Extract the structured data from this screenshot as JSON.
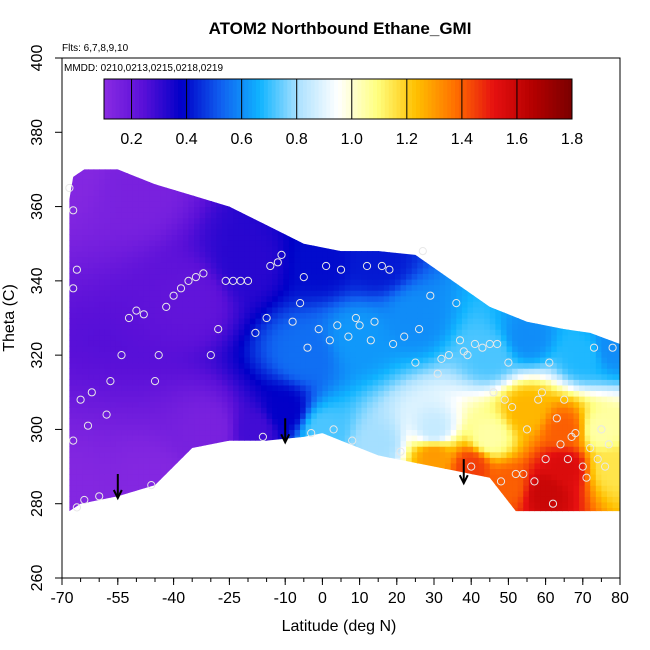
{
  "chart_data": {
    "type": "heatmap",
    "title": "ATOM2 Northbound Ethane_GMI",
    "flights_note": "Flts: 6,7,8,9,10",
    "dates_note": "MMDD: 0210,0213,0215,0218,0219",
    "xlabel": "Latitude (deg N)",
    "ylabel": "Theta (C)",
    "xlim": [
      -70,
      80
    ],
    "ylim": [
      260,
      400
    ],
    "x_ticks": [
      -70,
      -55,
      -40,
      -25,
      -10,
      0,
      10,
      20,
      30,
      40,
      50,
      60,
      70,
      80
    ],
    "x_tick_labels": [
      "-70",
      "-55",
      "-40",
      "-25",
      "-10",
      "0",
      "10",
      "20",
      "30",
      "40",
      "50",
      "60",
      "70",
      "80"
    ],
    "y_ticks": [
      260,
      280,
      300,
      320,
      340,
      360,
      380,
      400
    ],
    "y_tick_labels": [
      "260",
      "280",
      "300",
      "320",
      "340",
      "360",
      "380",
      "400"
    ],
    "colorbar": {
      "range": [
        0.1,
        1.8
      ],
      "ticks": [
        0.2,
        0.4,
        0.6,
        0.8,
        1.0,
        1.2,
        1.4,
        1.6,
        1.8
      ],
      "tick_labels": [
        "0.2",
        "0.4",
        "0.6",
        "0.8",
        "1.0",
        "1.2",
        "1.4",
        "1.6",
        "1.8"
      ],
      "colors": [
        "#8a2be2",
        "#5a10d8",
        "#0000c8",
        "#1060f0",
        "#10b4ff",
        "#aee2ff",
        "#ffffff",
        "#ffff80",
        "#ffc000",
        "#ff7000",
        "#e61010",
        "#b40000",
        "#7a0000"
      ]
    },
    "field_anchors": [
      {
        "lat": -68,
        "theta": 370,
        "value": 0.12
      },
      {
        "lat": -68,
        "theta": 280,
        "value": 0.12
      },
      {
        "lat": -50,
        "theta": 365,
        "value": 0.15
      },
      {
        "lat": -45,
        "theta": 285,
        "value": 0.12
      },
      {
        "lat": -35,
        "theta": 335,
        "value": 0.22
      },
      {
        "lat": -30,
        "theta": 300,
        "value": 0.15
      },
      {
        "lat": -20,
        "theta": 345,
        "value": 0.32
      },
      {
        "lat": -18,
        "theta": 300,
        "value": 0.28
      },
      {
        "lat": -10,
        "theta": 305,
        "value": 0.38
      },
      {
        "lat": -5,
        "theta": 320,
        "value": 0.55
      },
      {
        "lat": 0,
        "theta": 345,
        "value": 0.4
      },
      {
        "lat": 0,
        "theta": 300,
        "value": 0.72
      },
      {
        "lat": 10,
        "theta": 325,
        "value": 0.62
      },
      {
        "lat": 15,
        "theta": 345,
        "value": 0.42
      },
      {
        "lat": 15,
        "theta": 296,
        "value": 0.8
      },
      {
        "lat": 25,
        "theta": 330,
        "value": 0.6
      },
      {
        "lat": 30,
        "theta": 300,
        "value": 0.85
      },
      {
        "lat": 30,
        "theta": 293,
        "value": 1.3
      },
      {
        "lat": 40,
        "theta": 290,
        "value": 1.45
      },
      {
        "lat": 45,
        "theta": 298,
        "value": 1.05
      },
      {
        "lat": 45,
        "theta": 320,
        "value": 0.72
      },
      {
        "lat": 50,
        "theta": 285,
        "value": 1.4
      },
      {
        "lat": 55,
        "theta": 305,
        "value": 1.25
      },
      {
        "lat": 55,
        "theta": 325,
        "value": 0.6
      },
      {
        "lat": 60,
        "theta": 283,
        "value": 1.6
      },
      {
        "lat": 65,
        "theta": 300,
        "value": 1.4
      },
      {
        "lat": 65,
        "theta": 290,
        "value": 1.55
      },
      {
        "lat": 70,
        "theta": 320,
        "value": 0.68
      },
      {
        "lat": 75,
        "theta": 300,
        "value": 1.05
      },
      {
        "lat": 78,
        "theta": 290,
        "value": 1.15
      },
      {
        "lat": 78,
        "theta": 322,
        "value": 0.6
      }
    ],
    "upper_boundary": [
      [
        -68,
        362
      ],
      [
        -67,
        368
      ],
      [
        -64,
        370
      ],
      [
        -55,
        370
      ],
      [
        -45,
        366
      ],
      [
        -35,
        363
      ],
      [
        -25,
        360
      ],
      [
        -15,
        355
      ],
      [
        -5,
        350
      ],
      [
        5,
        348
      ],
      [
        15,
        348
      ],
      [
        25,
        347
      ],
      [
        35,
        340
      ],
      [
        45,
        333
      ],
      [
        55,
        329
      ],
      [
        65,
        327
      ],
      [
        72,
        326
      ],
      [
        80,
        323
      ]
    ],
    "lower_boundary": [
      [
        -68,
        278
      ],
      [
        -65,
        280
      ],
      [
        -55,
        282
      ],
      [
        -45,
        285
      ],
      [
        -35,
        295
      ],
      [
        -25,
        297
      ],
      [
        -15,
        297
      ],
      [
        -5,
        298
      ],
      [
        0,
        299
      ],
      [
        5,
        297
      ],
      [
        15,
        293
      ],
      [
        25,
        291
      ],
      [
        35,
        289
      ],
      [
        45,
        287
      ],
      [
        52,
        278
      ],
      [
        80,
        278
      ]
    ],
    "sample_points": [
      [
        -68,
        365
      ],
      [
        -67,
        359
      ],
      [
        -66,
        343
      ],
      [
        -67,
        338
      ],
      [
        -65,
        308
      ],
      [
        -67,
        297
      ],
      [
        -66,
        279
      ],
      [
        -64,
        281
      ],
      [
        -63,
        301
      ],
      [
        -62,
        310
      ],
      [
        -60,
        282
      ],
      [
        -58,
        304
      ],
      [
        -57,
        313
      ],
      [
        -54,
        320
      ],
      [
        -52,
        330
      ],
      [
        -50,
        332
      ],
      [
        -48,
        331
      ],
      [
        -46,
        285
      ],
      [
        -45,
        313
      ],
      [
        -44,
        320
      ],
      [
        -42,
        333
      ],
      [
        -40,
        336
      ],
      [
        -38,
        338
      ],
      [
        -36,
        340
      ],
      [
        -34,
        341
      ],
      [
        -32,
        342
      ],
      [
        -30,
        320
      ],
      [
        -28,
        327
      ],
      [
        -26,
        340
      ],
      [
        -24,
        340
      ],
      [
        -22,
        340
      ],
      [
        -20,
        340
      ],
      [
        -18,
        326
      ],
      [
        -16,
        298
      ],
      [
        -15,
        330
      ],
      [
        -14,
        344
      ],
      [
        -12,
        345
      ],
      [
        -11,
        347
      ],
      [
        -8,
        329
      ],
      [
        -6,
        334
      ],
      [
        -5,
        341
      ],
      [
        -4,
        322
      ],
      [
        -3,
        299
      ],
      [
        -1,
        327
      ],
      [
        1,
        344
      ],
      [
        2,
        324
      ],
      [
        3,
        300
      ],
      [
        4,
        328
      ],
      [
        5,
        343
      ],
      [
        7,
        325
      ],
      [
        8,
        297
      ],
      [
        9,
        330
      ],
      [
        10,
        328
      ],
      [
        12,
        344
      ],
      [
        13,
        324
      ],
      [
        14,
        329
      ],
      [
        16,
        344
      ],
      [
        18,
        343
      ],
      [
        19,
        323
      ],
      [
        21,
        294
      ],
      [
        22,
        325
      ],
      [
        25,
        318
      ],
      [
        26,
        327
      ],
      [
        27,
        348
      ],
      [
        29,
        336
      ],
      [
        31,
        315
      ],
      [
        32,
        319
      ],
      [
        34,
        320
      ],
      [
        36,
        334
      ],
      [
        37,
        324
      ],
      [
        38,
        321
      ],
      [
        39,
        320
      ],
      [
        40,
        290
      ],
      [
        41,
        323
      ],
      [
        43,
        322
      ],
      [
        45,
        323
      ],
      [
        46,
        310
      ],
      [
        47,
        323
      ],
      [
        48,
        286
      ],
      [
        49,
        308
      ],
      [
        50,
        318
      ],
      [
        51,
        306
      ],
      [
        52,
        288
      ],
      [
        54,
        288
      ],
      [
        55,
        300
      ],
      [
        57,
        286
      ],
      [
        58,
        308
      ],
      [
        59,
        310
      ],
      [
        60,
        292
      ],
      [
        61,
        318
      ],
      [
        62,
        280
      ],
      [
        63,
        303
      ],
      [
        64,
        296
      ],
      [
        65,
        308
      ],
      [
        66,
        292
      ],
      [
        67,
        298
      ],
      [
        68,
        299
      ],
      [
        70,
        290
      ],
      [
        71,
        287
      ],
      [
        72,
        295
      ],
      [
        73,
        322
      ],
      [
        74,
        292
      ],
      [
        75,
        300
      ],
      [
        76,
        290
      ],
      [
        77,
        296
      ],
      [
        78,
        322
      ]
    ],
    "arrows": [
      {
        "lat": -55,
        "theta": 288
      },
      {
        "lat": -10,
        "theta": 303
      },
      {
        "lat": 38,
        "theta": 292
      }
    ]
  }
}
